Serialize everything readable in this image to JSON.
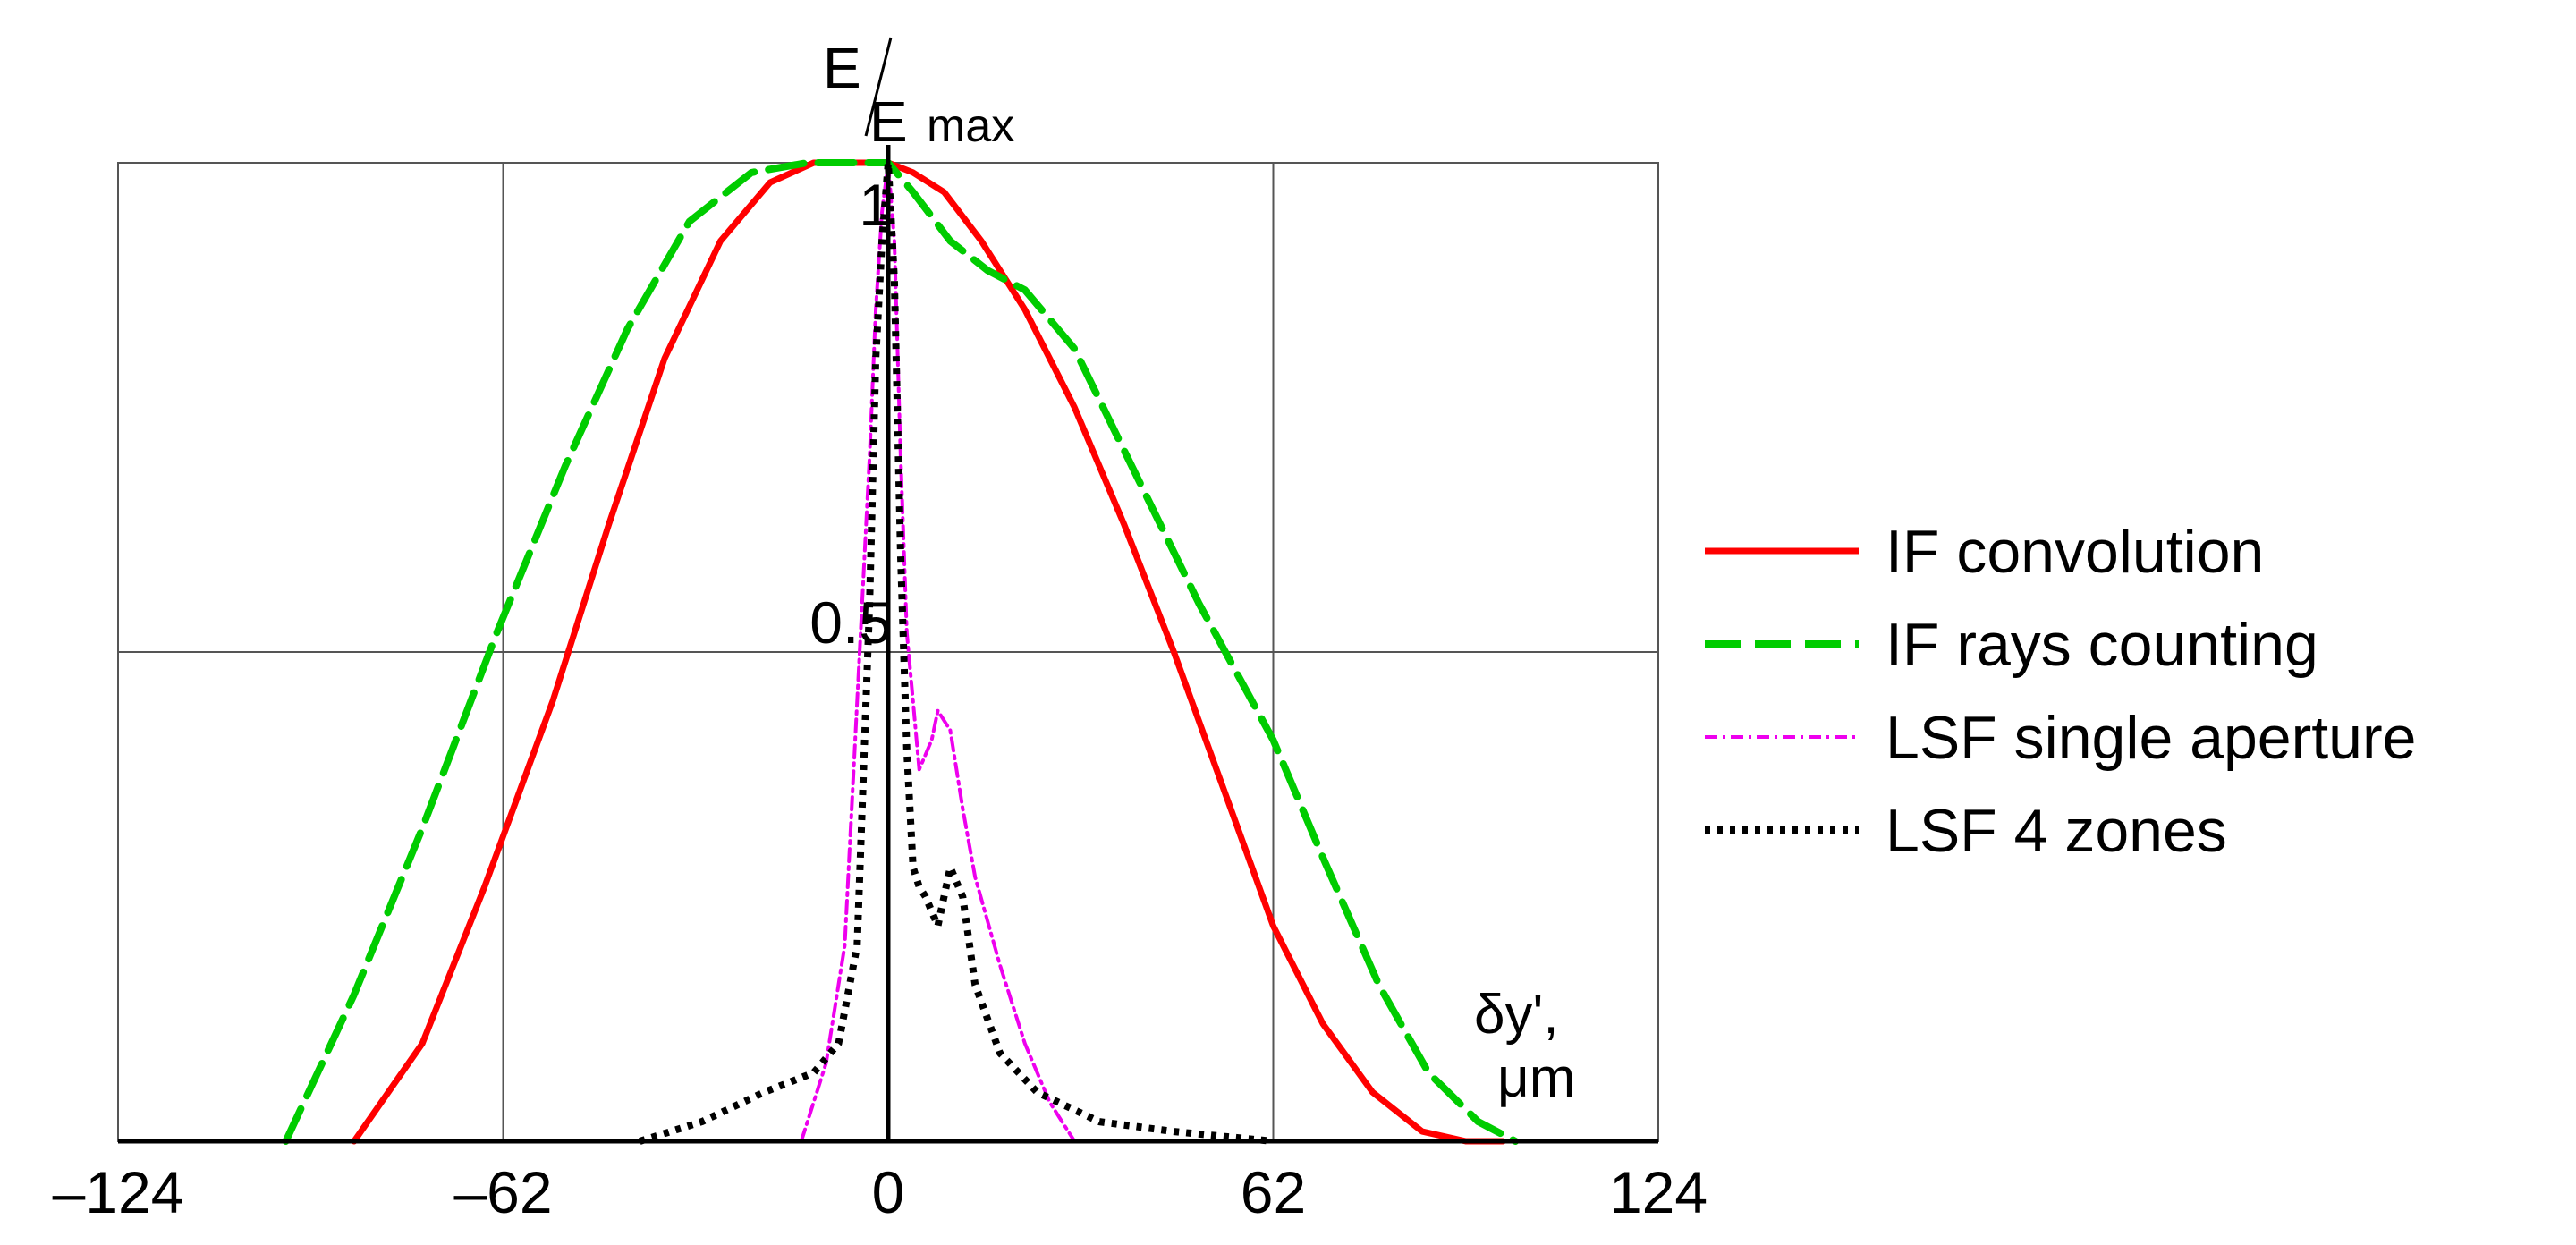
{
  "chart_data": {
    "type": "line",
    "y_axis_label": {
      "main": "E",
      "sub": "max",
      "slash": "/"
    },
    "x_axis_label": {
      "line1": "δy',",
      "line2": "μm"
    },
    "xlim": [
      -124,
      124
    ],
    "ylim": [
      0,
      1
    ],
    "x_ticks": [
      -124,
      -62,
      0,
      62,
      124
    ],
    "x_tick_labels": [
      "–124",
      "–62",
      "0",
      "62",
      "124"
    ],
    "y_ticks": [
      0.5,
      1
    ],
    "y_tick_labels": [
      "0.5",
      "1"
    ],
    "grid": true,
    "legend_position": "right",
    "series": [
      {
        "name": "IF convolution",
        "color": "#ff0000",
        "style": "solid",
        "x": [
          -86,
          -75,
          -65,
          -54,
          -45,
          -36,
          -27,
          -19,
          -12,
          -6,
          -2,
          0,
          4,
          9,
          15,
          22,
          30,
          38,
          46,
          54,
          62,
          70,
          78,
          86,
          93,
          99
        ],
        "y": [
          0,
          0.1,
          0.26,
          0.45,
          0.63,
          0.8,
          0.92,
          0.98,
          1.0,
          1.0,
          1.0,
          1.0,
          0.99,
          0.97,
          0.92,
          0.85,
          0.75,
          0.63,
          0.5,
          0.36,
          0.22,
          0.12,
          0.05,
          0.01,
          0.0,
          0.0
        ]
      },
      {
        "name": "IF rays counting",
        "color": "#00cc00",
        "style": "dashed",
        "x": [
          -97,
          -86,
          -75,
          -63,
          -52,
          -42,
          -32,
          -22,
          -13,
          -5,
          0,
          4,
          10,
          16,
          22,
          30,
          40,
          50,
          62,
          70,
          79,
          87,
          95,
          101
        ],
        "y": [
          0,
          0.15,
          0.32,
          0.52,
          0.69,
          0.83,
          0.94,
          0.99,
          1.0,
          1.0,
          1.0,
          0.97,
          0.92,
          0.89,
          0.87,
          0.81,
          0.68,
          0.55,
          0.41,
          0.29,
          0.16,
          0.07,
          0.02,
          0.0
        ]
      },
      {
        "name": "LSF single aperture",
        "color": "#ee00ee",
        "style": "dashdot",
        "x": [
          -14,
          -10,
          -7,
          -5,
          -3,
          -2,
          -1,
          0,
          1,
          2,
          3,
          5,
          7,
          8,
          10,
          12,
          14,
          18,
          22,
          26,
          30
        ],
        "y": [
          0,
          0.08,
          0.2,
          0.45,
          0.7,
          0.85,
          0.95,
          1.0,
          0.92,
          0.7,
          0.52,
          0.38,
          0.41,
          0.44,
          0.42,
          0.34,
          0.27,
          0.18,
          0.1,
          0.04,
          0.0
        ]
      },
      {
        "name": "LSF 4 zones",
        "color": "#000000",
        "style": "dotted",
        "x": [
          -40,
          -30,
          -20,
          -12,
          -8,
          -5,
          -3,
          -2,
          -1,
          0,
          1,
          2,
          3,
          4,
          5,
          6,
          8,
          10,
          12,
          14,
          18,
          24,
          34,
          46,
          62
        ],
        "y": [
          0,
          0.02,
          0.05,
          0.07,
          0.1,
          0.2,
          0.55,
          0.8,
          0.92,
          1.0,
          0.88,
          0.6,
          0.4,
          0.28,
          0.26,
          0.25,
          0.22,
          0.28,
          0.25,
          0.16,
          0.09,
          0.05,
          0.02,
          0.01,
          0.0
        ]
      }
    ]
  }
}
